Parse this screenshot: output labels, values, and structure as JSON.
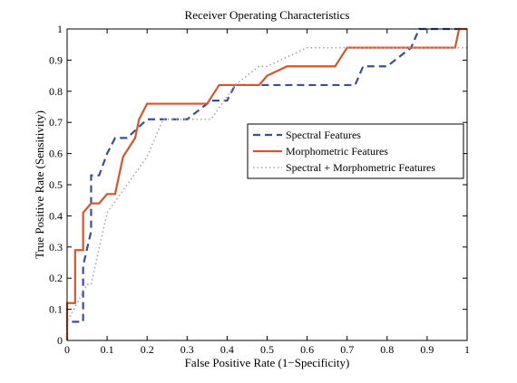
{
  "chart_data": {
    "type": "line",
    "title": "Receiver Operating Characteristics",
    "xlabel": "False Positive Rate (1−Specificity)",
    "ylabel": "True Positive Rate (Sensitivity)",
    "xlim": [
      0,
      1
    ],
    "ylim": [
      0,
      1
    ],
    "xticks": [
      0,
      0.1,
      0.2,
      0.3,
      0.4,
      0.5,
      0.6,
      0.7,
      0.8,
      0.9,
      1
    ],
    "yticks": [
      0,
      0.1,
      0.2,
      0.3,
      0.4,
      0.5,
      0.6,
      0.7,
      0.8,
      0.9,
      1
    ],
    "xtick_labels": [
      "0",
      "0.1",
      "0.2",
      "0.3",
      "0.4",
      "0.5",
      "0.6",
      "0.7",
      "0.8",
      "0.9",
      "1"
    ],
    "ytick_labels": [
      "0",
      "0.1",
      "0.2",
      "0.3",
      "0.4",
      "0.5",
      "0.6",
      "0.7",
      "0.8",
      "0.9",
      "1"
    ],
    "grid": false,
    "legend_position": "center-right",
    "series": [
      {
        "name": "Spectral Features",
        "color": "#3b4f94",
        "style": "dashed",
        "x": [
          0,
          0,
          0.04,
          0.04,
          0.06,
          0.06,
          0.08,
          0.1,
          0.12,
          0.15,
          0.2,
          0.3,
          0.36,
          0.4,
          0.42,
          0.5,
          0.72,
          0.74,
          0.8,
          0.86,
          0.88,
          0.95,
          1
        ],
        "y": [
          0,
          0.06,
          0.06,
          0.24,
          0.35,
          0.53,
          0.53,
          0.6,
          0.65,
          0.65,
          0.71,
          0.71,
          0.77,
          0.77,
          0.82,
          0.82,
          0.82,
          0.88,
          0.88,
          0.94,
          1.0,
          1.0,
          1.0
        ]
      },
      {
        "name": "Morphometric Features",
        "color": "#d9542a",
        "style": "solid",
        "x": [
          0,
          0,
          0.02,
          0.02,
          0.04,
          0.04,
          0.06,
          0.08,
          0.1,
          0.12,
          0.14,
          0.17,
          0.18,
          0.2,
          0.35,
          0.38,
          0.48,
          0.5,
          0.55,
          0.67,
          0.7,
          0.97,
          0.98,
          1
        ],
        "y": [
          0,
          0.12,
          0.12,
          0.29,
          0.29,
          0.41,
          0.44,
          0.44,
          0.47,
          0.47,
          0.59,
          0.65,
          0.71,
          0.76,
          0.76,
          0.82,
          0.82,
          0.85,
          0.88,
          0.88,
          0.94,
          0.94,
          1.0,
          1.0
        ]
      },
      {
        "name": "Spectral + Morphometric Features",
        "color": "#a6a6a6",
        "style": "dotted",
        "x": [
          0,
          0,
          0.05,
          0.06,
          0.1,
          0.2,
          0.24,
          0.36,
          0.42,
          0.48,
          0.5,
          0.6,
          0.98,
          1
        ],
        "y": [
          0,
          0.06,
          0.18,
          0.18,
          0.41,
          0.59,
          0.71,
          0.71,
          0.82,
          0.88,
          0.88,
          0.94,
          0.94,
          0.94
        ]
      }
    ]
  }
}
